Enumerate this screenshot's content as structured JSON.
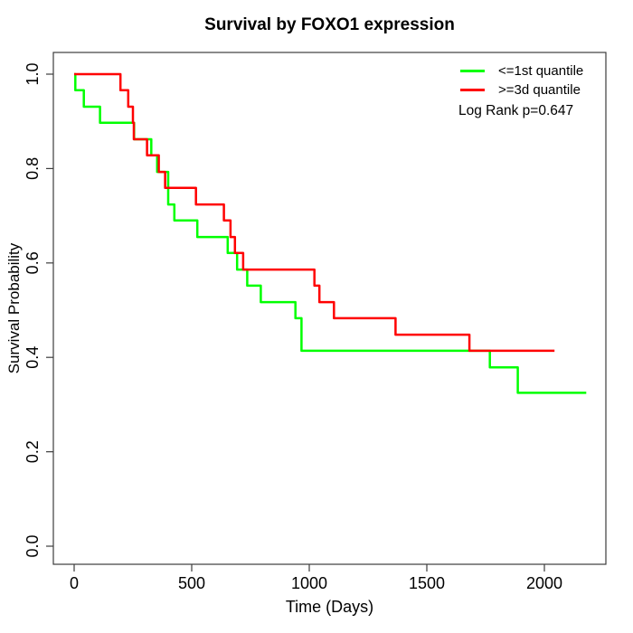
{
  "chart_data": {
    "type": "line",
    "subtype": "kaplan-meier-step",
    "title": "Survival by FOXO1 expression",
    "xlabel": "Time (Days)",
    "ylabel": "Survival Probability",
    "xlim": [
      0,
      2260
    ],
    "ylim": [
      0.0,
      1.0
    ],
    "x_ticks": [
      0,
      500,
      1000,
      1500,
      2000
    ],
    "y_ticks": [
      0.0,
      0.2,
      0.4,
      0.6,
      0.8,
      1.0
    ],
    "grid": false,
    "box": true,
    "legend_position": "top-right",
    "annotation": "Log Rank p=0.647",
    "series": [
      {
        "name": "<=1st quantile",
        "color": "#00FF00",
        "end_time": 2178,
        "steps": [
          [
            0,
            1.0
          ],
          [
            5,
            0.966
          ],
          [
            41,
            0.931
          ],
          [
            110,
            0.897
          ],
          [
            255,
            0.862
          ],
          [
            328,
            0.828
          ],
          [
            353,
            0.793
          ],
          [
            400,
            0.724
          ],
          [
            426,
            0.69
          ],
          [
            524,
            0.655
          ],
          [
            653,
            0.621
          ],
          [
            693,
            0.586
          ],
          [
            736,
            0.552
          ],
          [
            794,
            0.517
          ],
          [
            941,
            0.483
          ],
          [
            967,
            0.414
          ],
          [
            1768,
            0.379
          ],
          [
            1887,
            0.325
          ]
        ]
      },
      {
        "name": ">=3d quantile",
        "color": "#FF0000",
        "end_time": 2043,
        "steps": [
          [
            0,
            1.0
          ],
          [
            197,
            0.966
          ],
          [
            230,
            0.931
          ],
          [
            250,
            0.897
          ],
          [
            254,
            0.862
          ],
          [
            310,
            0.828
          ],
          [
            360,
            0.793
          ],
          [
            387,
            0.759
          ],
          [
            518,
            0.724
          ],
          [
            637,
            0.69
          ],
          [
            665,
            0.655
          ],
          [
            684,
            0.621
          ],
          [
            719,
            0.586
          ],
          [
            1022,
            0.552
          ],
          [
            1043,
            0.517
          ],
          [
            1105,
            0.483
          ],
          [
            1367,
            0.448
          ],
          [
            1681,
            0.414
          ]
        ]
      }
    ]
  }
}
